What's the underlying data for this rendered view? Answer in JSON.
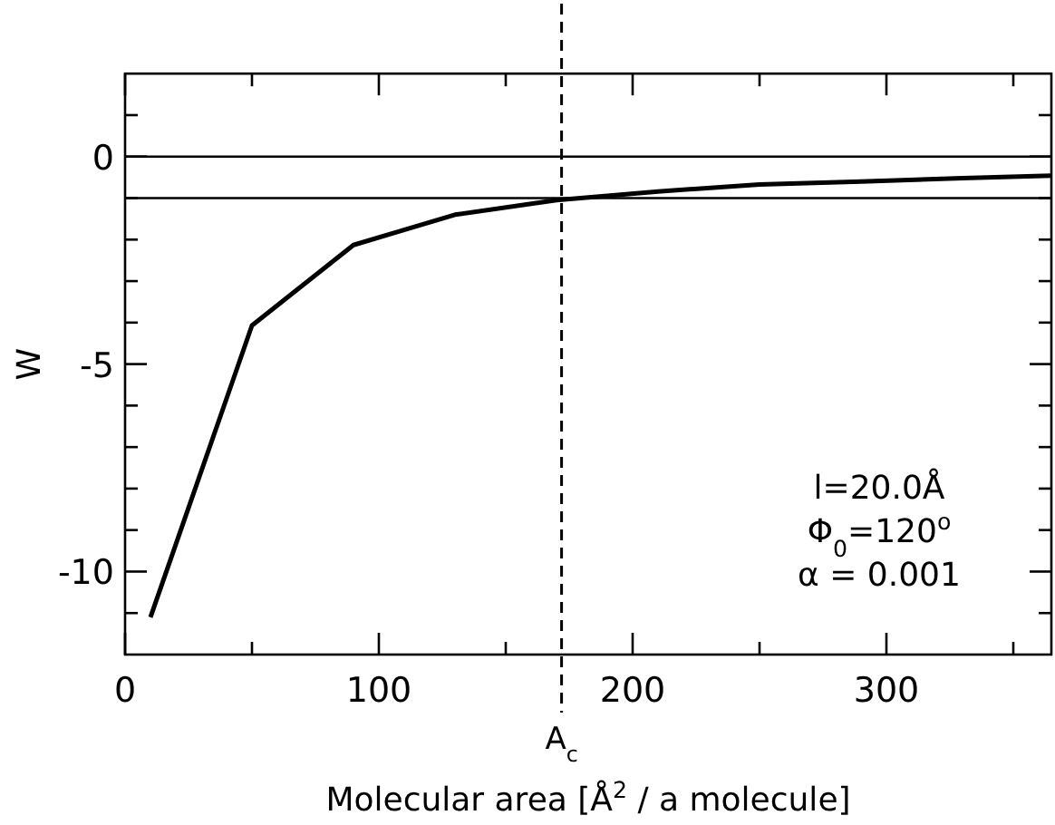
{
  "chart_data": {
    "type": "line",
    "xlabel": "Molecular area [Å$^{2}$ / a molecule]",
    "ylabel": "W",
    "x": [
      10,
      50,
      90,
      130,
      170,
      210,
      250,
      290,
      330,
      365
    ],
    "series": [
      {
        "color": "#000000",
        "values": [
          -11.1,
          -4.07,
          -2.13,
          -1.4,
          -1.05,
          -0.84,
          -0.67,
          -0.6,
          -0.52,
          -0.46
        ]
      }
    ],
    "xlim": [
      0,
      365
    ],
    "xticks": [
      0,
      {
        "value": 50,
        "label": null
      },
      100,
      {
        "value": 150,
        "label": null
      },
      200,
      {
        "value": 250,
        "label": null
      },
      300,
      {
        "value": 350,
        "label": null
      }
    ],
    "ylim": [
      -12,
      2
    ],
    "yticks": [
      {
        "value": 1,
        "label": null
      },
      0,
      {
        "value": -1,
        "label": null
      },
      {
        "value": -2,
        "label": null
      },
      {
        "value": -3,
        "label": null
      },
      {
        "value": -4,
        "label": null
      },
      -5,
      {
        "value": -6,
        "label": null
      },
      {
        "value": -7,
        "label": null
      },
      {
        "value": -8,
        "label": null
      },
      {
        "value": -9,
        "label": null
      },
      -10,
      {
        "value": -11,
        "label": null
      }
    ],
    "ref_lines": [
      {
        "axis": "y",
        "value": 0,
        "line_style": "solid"
      },
      {
        "axis": "y",
        "value": -1,
        "line_style": "solid"
      },
      {
        "axis": "x",
        "value": 172,
        "label": "A$_{c}$",
        "line_style": "dashed"
      }
    ],
    "annotations": [
      "l=20.0Å",
      "Φ$_{0}$=120$^{o}$",
      "α = 0.001"
    ],
    "grid": false,
    "marker": "none",
    "line_style": "solid"
  }
}
